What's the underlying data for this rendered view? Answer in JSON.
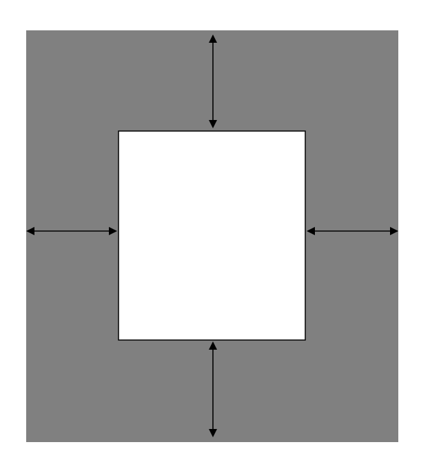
{
  "colors": {
    "page_background": "#ffffff",
    "outer_area": "#808080",
    "inner_box_fill": "#ffffff",
    "inner_box_stroke": "#000000",
    "arrow_color": "#000000"
  },
  "diagram": {
    "shapes": {
      "outer_area": "gray-rectangle",
      "inner_box": "white-rectangle"
    },
    "arrows": [
      {
        "name": "top-arrow",
        "type": "double-headed-arrow",
        "direction": "vertical"
      },
      {
        "name": "bottom-arrow",
        "type": "double-headed-arrow",
        "direction": "vertical"
      },
      {
        "name": "left-arrow",
        "type": "double-headed-arrow",
        "direction": "horizontal"
      },
      {
        "name": "right-arrow",
        "type": "double-headed-arrow",
        "direction": "horizontal"
      }
    ]
  }
}
